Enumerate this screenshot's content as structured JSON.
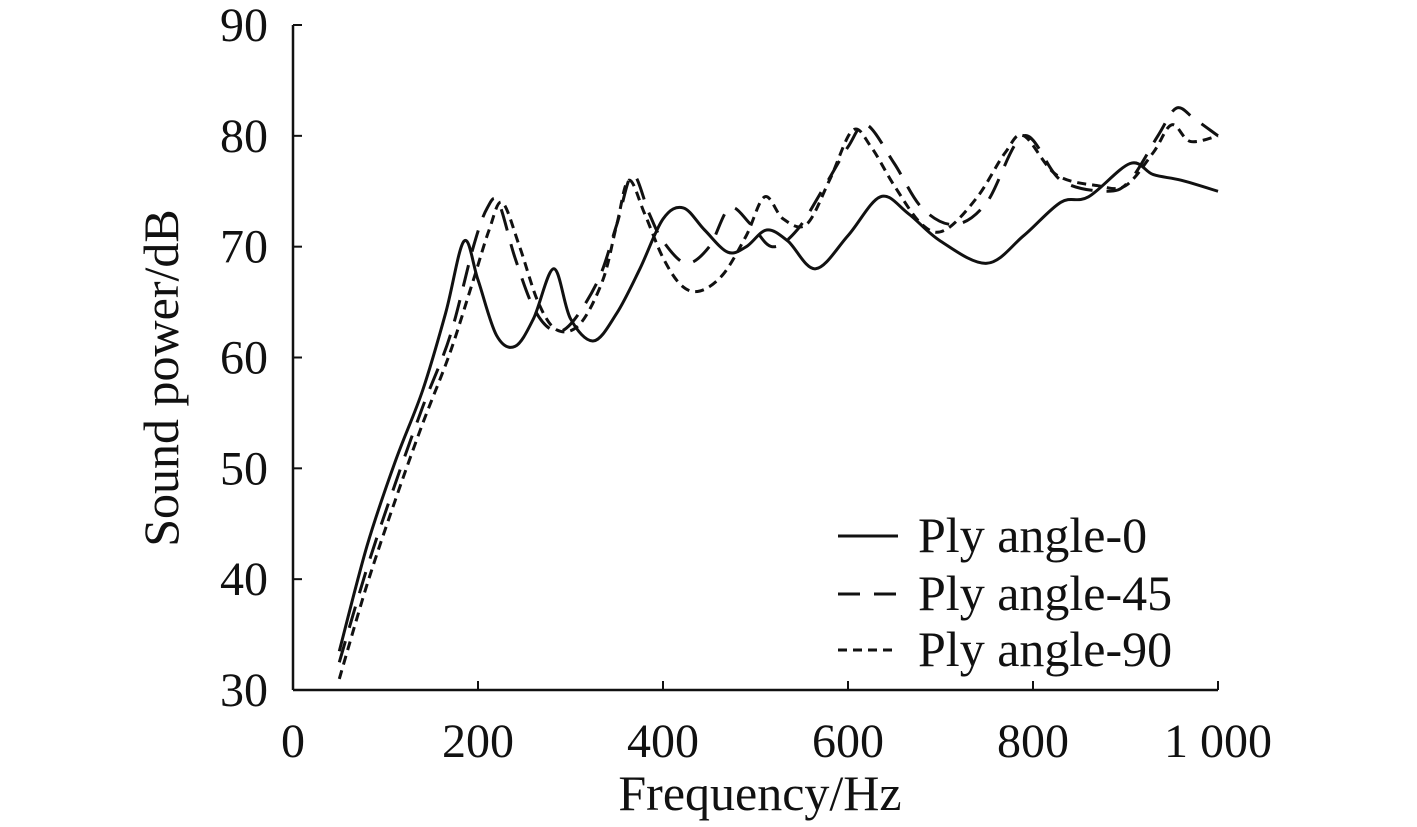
{
  "chart_data": {
    "type": "line",
    "title": "",
    "xlabel": "Frequency/Hz",
    "ylabel": "Sound power/dB",
    "xlim": [
      0,
      1000
    ],
    "ylim": [
      30,
      90
    ],
    "xticks": [
      0,
      200,
      400,
      600,
      800,
      1000
    ],
    "xtick_labels": [
      "0",
      "200",
      "400",
      "600",
      "800",
      "1 000"
    ],
    "yticks": [
      30,
      40,
      50,
      60,
      70,
      80,
      90
    ],
    "ytick_labels": [
      "30",
      "40",
      "50",
      "60",
      "70",
      "80",
      "90"
    ],
    "grid": false,
    "legend_position": "bottom-right",
    "series": [
      {
        "name": "Ply angle-0",
        "style": "solid",
        "x": [
          50,
          80,
          110,
          140,
          165,
          185,
          200,
          220,
          240,
          260,
          282,
          300,
          325,
          350,
          375,
          400,
          422,
          445,
          470,
          490,
          512,
          535,
          565,
          600,
          635,
          665,
          700,
          750,
          790,
          830,
          860,
          905,
          930,
          960,
          1000
        ],
        "y": [
          33.5,
          43,
          50.5,
          57,
          64,
          70.5,
          67,
          62,
          61,
          63.5,
          68,
          63.5,
          61.5,
          64,
          68,
          72.5,
          73.5,
          71.5,
          69.5,
          70,
          71.5,
          70.5,
          68,
          71,
          74.5,
          73,
          70.5,
          68.5,
          71,
          74,
          74.5,
          77.5,
          76.5,
          76,
          75
        ]
      },
      {
        "name": "Ply angle-45",
        "style": "dashed",
        "x": [
          50,
          80,
          110,
          140,
          170,
          195,
          210,
          222,
          240,
          260,
          280,
          300,
          330,
          350,
          367,
          385,
          400,
          425,
          450,
          472,
          495,
          518,
          545,
          575,
          600,
          620,
          650,
          680,
          715,
          750,
          790,
          830,
          880,
          905,
          935,
          955,
          975,
          1000
        ],
        "y": [
          32.5,
          41,
          48.5,
          55.5,
          62,
          70,
          73.5,
          74,
          69,
          64.5,
          62.5,
          63,
          67,
          72,
          76.5,
          73,
          70.5,
          68.5,
          70,
          73.5,
          72,
          70,
          71.5,
          75.5,
          79,
          81,
          77.5,
          73.5,
          72,
          74,
          80,
          76,
          75,
          76,
          80,
          82.5,
          81.5,
          80
        ]
      },
      {
        "name": "Ply angle-90",
        "style": "dotted",
        "x": [
          50,
          80,
          110,
          140,
          170,
          195,
          212,
          226,
          245,
          265,
          285,
          310,
          335,
          350,
          363,
          380,
          400,
          420,
          440,
          465,
          490,
          510,
          530,
          555,
          580,
          605,
          625,
          650,
          680,
          705,
          740,
          770,
          790,
          825,
          870,
          900,
          930,
          950,
          970,
          1000
        ],
        "y": [
          31,
          39.5,
          47,
          54,
          60.5,
          67,
          71.5,
          74,
          70,
          65,
          62.5,
          63,
          67,
          72,
          76,
          73,
          69,
          66.5,
          66,
          67.5,
          71,
          74.5,
          72.5,
          72,
          76,
          80.5,
          79,
          75.5,
          72,
          71.5,
          74.5,
          78.5,
          80,
          76.5,
          75.5,
          75.5,
          78.5,
          81,
          79.5,
          80
        ]
      }
    ]
  }
}
